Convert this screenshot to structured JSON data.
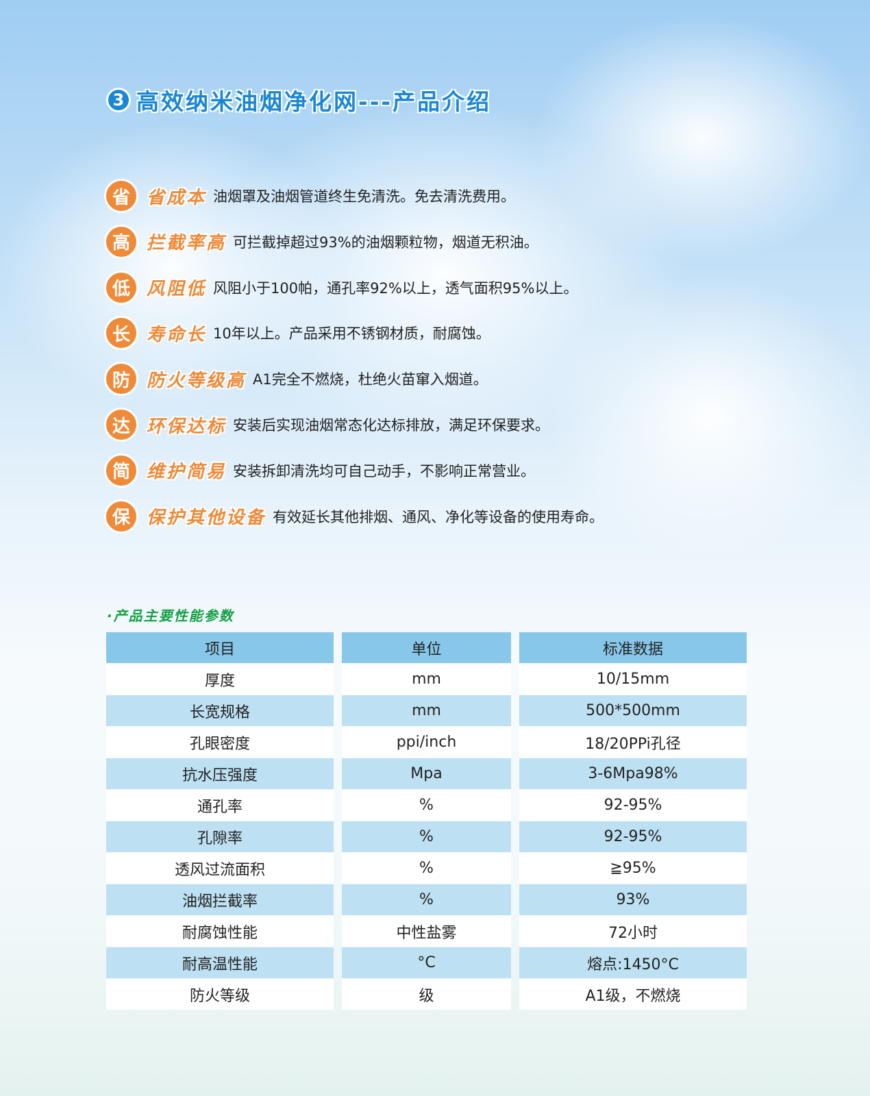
{
  "title": {
    "number": "3",
    "text": "高效纳米油烟净化网---产品介绍"
  },
  "features": [
    {
      "badge": "省",
      "label": "省成本",
      "desc": "油烟罩及油烟管道终生免清洗。免去清洗费用。"
    },
    {
      "badge": "高",
      "label": "拦截率高",
      "desc": "可拦截掉超过93%的油烟颗粒物，烟道无积油。"
    },
    {
      "badge": "低",
      "label": "风阻低",
      "desc": "风阻小于100帕，通孔率92%以上，透气面积95%以上。"
    },
    {
      "badge": "长",
      "label": "寿命长",
      "desc": "10年以上。产品采用不锈钢材质，耐腐蚀。"
    },
    {
      "badge": "防",
      "label": "防火等级高",
      "desc": "A1完全不燃烧，杜绝火苗窜入烟道。"
    },
    {
      "badge": "达",
      "label": "环保达标",
      "desc": "安装后实现油烟常态化达标排放，满足环保要求。"
    },
    {
      "badge": "简",
      "label": "维护简易",
      "desc": "安装拆卸清洗均可自己动手，不影响正常营业。"
    },
    {
      "badge": "保",
      "label": "保护其他设备",
      "desc": "有效延长其他排烟、通风、净化等设备的使用寿命。"
    }
  ],
  "specs": {
    "title": "·产品主要性能参数",
    "headers": [
      "项目",
      "单位",
      "标准数据"
    ],
    "rows": [
      [
        "厚度",
        "mm",
        "10/15mm"
      ],
      [
        "长宽规格",
        "mm",
        "500*500mm"
      ],
      [
        "孔眼密度",
        "ppi/inch",
        "18/20PPi孔径"
      ],
      [
        "抗水压强度",
        "Mpa",
        "3-6Mpa98%"
      ],
      [
        "通孔率",
        "%",
        "92-95%"
      ],
      [
        "孔隙率",
        "%",
        "92-95%"
      ],
      [
        "透风过流面积",
        "%",
        "≧95%"
      ],
      [
        "油烟拦截率",
        "%",
        "93%"
      ],
      [
        "耐腐蚀性能",
        "中性盐雾",
        "72小时"
      ],
      [
        "耐高温性能",
        "°C",
        "熔点:1450°C"
      ],
      [
        "防火等级",
        "级",
        "A1级，不燃烧"
      ]
    ]
  }
}
